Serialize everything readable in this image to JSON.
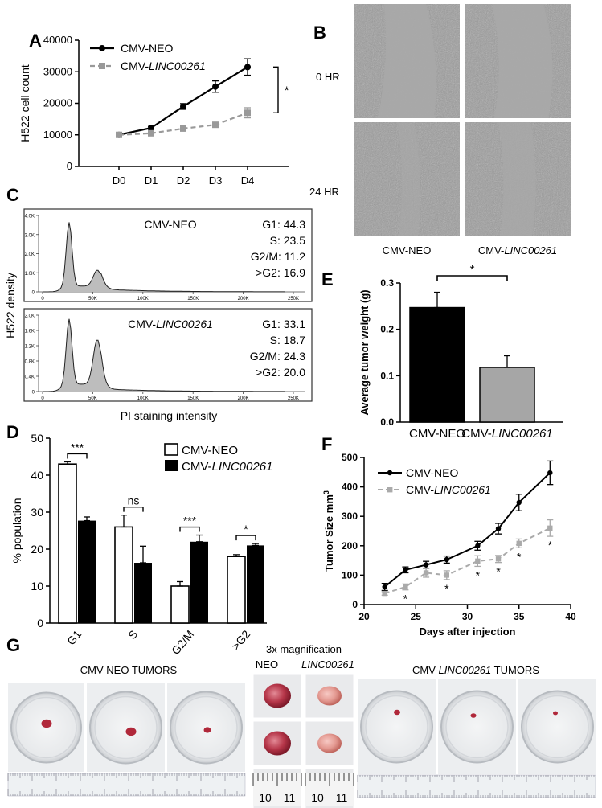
{
  "panels": {
    "A": "A",
    "B": "B",
    "C": "C",
    "D": "D",
    "E": "E",
    "F": "F",
    "G": "G"
  },
  "chart_data": [
    {
      "id": "A",
      "type": "line",
      "categories": [
        "D0",
        "D1",
        "D2",
        "D3",
        "D4"
      ],
      "ylabel": "H522 cell count",
      "ylim": [
        0,
        40000
      ],
      "yticks": [
        0,
        10000,
        20000,
        30000,
        40000
      ],
      "ytick_labels": [
        "0",
        "10000",
        "20000",
        "30000",
        "40000"
      ],
      "series": [
        {
          "name": "CMV-NEO",
          "color": "#000000",
          "dashed": false,
          "values": [
            10000,
            12200,
            19000,
            25300,
            31500
          ],
          "errors": [
            300,
            500,
            900,
            1800,
            2600
          ]
        },
        {
          "name": "CMV-",
          "name_italic": "LINC00261",
          "color": "#999999",
          "dashed": true,
          "values": [
            10000,
            10500,
            12000,
            13200,
            17000
          ],
          "errors": [
            300,
            400,
            500,
            600,
            1600
          ]
        }
      ],
      "significance": "*"
    },
    {
      "id": "C",
      "type": "area",
      "ylabel": "H522 density",
      "xlabel": "PI staining intensity",
      "xticks": [
        "0",
        "50K",
        "100K",
        "150K",
        "200K",
        "250K"
      ],
      "subplots": [
        {
          "title": "CMV-NEO",
          "title_italic": "",
          "yticks": [
            "0",
            "1.0K",
            "2.0K",
            "3.0K",
            "4.0K"
          ],
          "stats": [
            "G1: 44.3",
            "S: 23.5",
            "G2/M: 11.2",
            ">G2: 16.9"
          ]
        },
        {
          "title": "CMV-",
          "title_italic": "LINC00261",
          "yticks": [
            "0",
            "0.4K",
            "0.8K",
            "1.2K",
            "1.6K",
            "2.0K"
          ],
          "stats": [
            "G1: 33.1",
            "S: 18.7",
            "G2/M: 24.3",
            ">G2: 20.0"
          ]
        }
      ]
    },
    {
      "id": "D",
      "type": "bar",
      "categories": [
        "G1",
        "S",
        "G2/M",
        ">G2"
      ],
      "ylabel": "% population",
      "ylim": [
        0,
        50
      ],
      "yticks": [
        0,
        10,
        20,
        30,
        40,
        50
      ],
      "series": [
        {
          "name": "CMV-NEO",
          "name_italic": "",
          "color": "#ffffff",
          "values": [
            43,
            26,
            10,
            18
          ],
          "errors": [
            0.6,
            3.2,
            1.2,
            0.5
          ]
        },
        {
          "name": "CMV-",
          "name_italic": "LINC00261",
          "color": "#000000",
          "values": [
            27.7,
            16.3,
            22,
            21
          ],
          "errors": [
            1,
            4.5,
            1.8,
            0.5
          ]
        }
      ],
      "significance": [
        "***",
        "ns",
        "***",
        "*"
      ]
    },
    {
      "id": "E",
      "type": "bar",
      "categories": [
        "CMV-NEO",
        "CMV-LINC00261"
      ],
      "category_labels": [
        {
          "plain": "CMV-NEO",
          "italic": ""
        },
        {
          "plain": "CMV-",
          "italic": "LINC00261"
        }
      ],
      "ylabel": "Average tumor weight (g)",
      "ylim": [
        0,
        0.3
      ],
      "yticks": [
        0.0,
        0.1,
        0.2,
        0.3
      ],
      "ytick_labels": [
        "0.0",
        "0.1",
        "0.2",
        "0.3"
      ],
      "values": [
        0.247,
        0.118
      ],
      "errors": [
        0.033,
        0.025
      ],
      "colors": [
        "#000000",
        "#a6a6a6"
      ],
      "significance": "*"
    },
    {
      "id": "F",
      "type": "line",
      "xlabel": "Days after injection",
      "ylabel": "Tumor Size mm",
      "ylabel_sup": "3",
      "xlim": [
        20,
        40
      ],
      "ylim": [
        0,
        500
      ],
      "xticks": [
        20,
        25,
        30,
        35,
        40
      ],
      "yticks": [
        0,
        100,
        200,
        300,
        400,
        500
      ],
      "x": [
        22,
        24,
        26,
        28,
        31,
        33,
        35,
        38
      ],
      "series": [
        {
          "name": "CMV-NEO",
          "name_italic": "",
          "color": "#000000",
          "dashed": false,
          "values": [
            60,
            118,
            135,
            153,
            200,
            258,
            347,
            448
          ],
          "errors": [
            12,
            10,
            12,
            12,
            15,
            18,
            28,
            40
          ]
        },
        {
          "name": "CMV-",
          "name_italic": "LINC00261",
          "color": "#aaaaaa",
          "dashed": true,
          "values": [
            38,
            60,
            108,
            100,
            148,
            155,
            208,
            260
          ],
          "errors": [
            6,
            10,
            15,
            15,
            18,
            12,
            15,
            28
          ]
        }
      ],
      "significance_at": [
        24,
        28,
        31,
        33,
        35,
        38
      ],
      "significance": "*"
    }
  ],
  "panel_b": {
    "row_labels": [
      "0 HR",
      "24 HR"
    ],
    "col_labels": [
      {
        "plain": "CMV-NEO",
        "italic": ""
      },
      {
        "plain": "CMV-",
        "italic": "LINC00261"
      }
    ]
  },
  "panel_g": {
    "left_title": "CMV-NEO TUMORS",
    "right_title_plain": "CMV-",
    "right_title_italic": "LINC00261",
    "right_title_suffix": " TUMORS",
    "mag_title": "3x magnification",
    "mag_col_neo": "NEO",
    "mag_col_linc": "LINC00261",
    "ruler_numbers": [
      "10",
      "11",
      "10",
      "11"
    ],
    "tumor_color": "#b0283a"
  }
}
